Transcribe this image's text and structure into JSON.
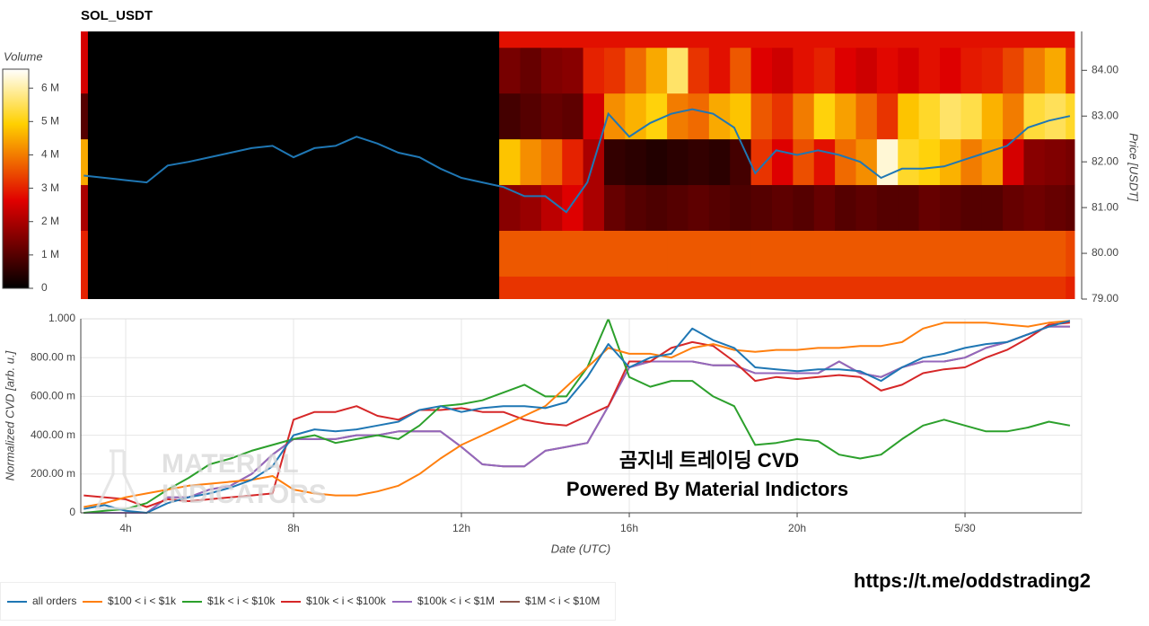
{
  "chart_data": [
    {
      "type": "heatmap",
      "title": "SOL_USDT",
      "ylabel": "Price [USDT]",
      "colorbar_title": "Volume",
      "xlim": [
        2.93,
        26.78
      ],
      "ylim": [
        79,
        84.85
      ],
      "yticks": [
        {
          "value": 79,
          "label": "79.00"
        },
        {
          "value": 80,
          "label": "80.00"
        },
        {
          "value": 81,
          "label": "81.00"
        },
        {
          "value": 82,
          "label": "82.00"
        },
        {
          "value": 83,
          "label": "83.00"
        },
        {
          "value": 84,
          "label": "84.00"
        }
      ],
      "clim": [
        0,
        6.57
      ],
      "cticks": [
        0,
        {
          "value": 1,
          "label": "1 M"
        },
        {
          "value": 2,
          "label": "2 M"
        },
        {
          "value": 3,
          "label": "3 M"
        },
        {
          "value": 4,
          "label": "4 M"
        },
        {
          "value": 5,
          "label": "5 M"
        },
        {
          "value": 6,
          "label": "6 M"
        }
      ],
      "colorscale": [
        [
          0,
          "#000000"
        ],
        [
          0.4,
          "#e00000"
        ],
        [
          0.75,
          "#ffd000"
        ],
        [
          1,
          "#ffffff"
        ]
      ],
      "x_bins": [
        2.93,
        3.1,
        12.9,
        13.4,
        13.9,
        14.4,
        14.9,
        15.4,
        15.9,
        16.4,
        16.9,
        17.4,
        17.9,
        18.4,
        18.9,
        19.4,
        19.9,
        20.4,
        20.9,
        21.4,
        21.9,
        22.4,
        22.9,
        23.4,
        23.9,
        24.4,
        24.9,
        25.4,
        25.9,
        26.4,
        26.61
      ],
      "y_bins": [
        78.5,
        79.5,
        80.5,
        81.5,
        82.5,
        83.5,
        84.5,
        85.5
      ],
      "z": [
        [
          3.0,
          0,
          3.2,
          3.2,
          3.2,
          3.2,
          3.2,
          3.2,
          3.2,
          3.2,
          3.2,
          3.2,
          3.2,
          3.2,
          3.2,
          3.2,
          3.2,
          3.2,
          3.2,
          3.2,
          3.2,
          3.2,
          3.2,
          3.2,
          3.2,
          3.2,
          3.2,
          3.2,
          3.2,
          3.0
        ],
        [
          3.0,
          0,
          3.6,
          3.6,
          3.6,
          3.6,
          3.6,
          3.6,
          3.6,
          3.6,
          3.6,
          3.6,
          3.6,
          3.6,
          3.6,
          3.6,
          3.6,
          3.6,
          3.6,
          3.6,
          3.6,
          3.6,
          3.6,
          3.6,
          3.6,
          3.6,
          3.6,
          3.6,
          3.6,
          3.4
        ],
        [
          2,
          0,
          1.6,
          1.8,
          2.2,
          2.6,
          2.0,
          1.2,
          1.0,
          0.9,
          1.0,
          1.1,
          1.0,
          0.9,
          1.0,
          1.1,
          1.0,
          1.2,
          1.0,
          1.1,
          1.0,
          1.0,
          1.2,
          1.1,
          1.0,
          1.0,
          1.2,
          1.3,
          1.2,
          1.1
        ],
        [
          4.5,
          0,
          4.8,
          4.2,
          3.8,
          3.0,
          2.0,
          0.6,
          0.5,
          0.4,
          0.5,
          0.6,
          0.5,
          0.8,
          3.2,
          2.6,
          3.5,
          2.8,
          3.8,
          4.2,
          6.3,
          5.2,
          5.0,
          4.6,
          4.0,
          4.4,
          2.5,
          1.6,
          1.5,
          1.4
        ],
        [
          1,
          0,
          0.8,
          1.0,
          1.2,
          1.1,
          2.5,
          4.2,
          4.6,
          5.0,
          4.0,
          3.8,
          4.5,
          4.8,
          3.6,
          3.2,
          4.0,
          5.0,
          4.4,
          3.8,
          3.2,
          4.8,
          5.2,
          5.6,
          5.4,
          4.6,
          4.0,
          5.3,
          5.5,
          5.2
        ],
        [
          2.5,
          0,
          1.4,
          1.2,
          1.5,
          1.6,
          3.0,
          3.2,
          3.8,
          4.5,
          5.6,
          3.2,
          2.8,
          3.6,
          2.6,
          2.4,
          2.8,
          3.0,
          2.6,
          2.4,
          2.7,
          2.5,
          2.8,
          2.6,
          2.9,
          3.0,
          3.4,
          4.0,
          4.5,
          3.2
        ],
        [
          2.5,
          0,
          2.8,
          2.8,
          2.8,
          2.8,
          2.8,
          2.8,
          2.8,
          2.8,
          2.8,
          2.8,
          2.8,
          2.8,
          2.8,
          2.8,
          2.8,
          2.8,
          2.8,
          2.8,
          2.8,
          2.8,
          2.8,
          2.8,
          2.8,
          2.8,
          2.8,
          2.8,
          2.8,
          2.8
        ]
      ],
      "x": [
        3,
        3.5,
        4,
        4.5,
        5,
        5.5,
        6,
        6.5,
        7,
        7.5,
        8,
        8.5,
        9,
        9.5,
        10,
        10.5,
        11,
        11.5,
        12,
        12.5,
        13,
        13.5,
        14,
        14.5,
        15,
        15.5,
        16,
        16.5,
        17,
        17.5,
        18,
        18.5,
        19,
        19.5,
        20,
        20.5,
        21,
        21.5,
        22,
        22.5,
        23,
        23.5,
        24,
        24.5,
        25,
        25.5,
        26,
        26.5
      ],
      "line": {
        "color": "#1f77b4",
        "values": [
          81.7,
          81.65,
          81.6,
          81.55,
          81.92,
          82.0,
          82.1,
          82.2,
          82.3,
          82.35,
          82.1,
          82.3,
          82.35,
          82.55,
          82.4,
          82.2,
          82.1,
          81.85,
          81.65,
          81.55,
          81.45,
          81.25,
          81.25,
          80.9,
          81.55,
          83.05,
          82.55,
          82.85,
          83.05,
          83.15,
          83.05,
          82.75,
          81.75,
          82.25,
          82.15,
          82.25,
          82.15,
          82.0,
          81.65,
          81.85,
          81.85,
          81.9,
          82.05,
          82.2,
          82.35,
          82.75,
          82.9,
          83.0
        ]
      }
    },
    {
      "type": "line",
      "xlabel": "Date (UTC)",
      "ylabel": "Normalized CVD [arb. u.]",
      "xlim": [
        2.93,
        26.78
      ],
      "ylim": [
        0,
        1.0
      ],
      "grid": true,
      "xticks": [
        {
          "value": 4,
          "label": "4h"
        },
        {
          "value": 8,
          "label": "8h"
        },
        {
          "value": 12,
          "label": "12h"
        },
        {
          "value": 16,
          "label": "16h"
        },
        {
          "value": 20,
          "label": "20h"
        },
        {
          "value": 24,
          "label": "5/30"
        }
      ],
      "yticks": [
        0,
        {
          "value": 0.2,
          "label": "200.00 m"
        },
        {
          "value": 0.4,
          "label": "400.00 m"
        },
        {
          "value": 0.6,
          "label": "600.00 m"
        },
        {
          "value": 0.8,
          "label": "800.00 m"
        },
        {
          "value": 1.0,
          "label": "1.000"
        }
      ],
      "x": [
        3,
        3.5,
        4,
        4.5,
        5,
        5.5,
        6,
        6.5,
        7,
        7.5,
        8,
        8.5,
        9,
        9.5,
        10,
        10.5,
        11,
        11.5,
        12,
        12.5,
        13,
        13.5,
        14,
        14.5,
        15,
        15.5,
        16,
        16.5,
        17,
        17.5,
        18,
        18.5,
        19,
        19.5,
        20,
        20.5,
        21,
        21.5,
        22,
        22.5,
        23,
        23.5,
        24,
        24.5,
        25,
        25.5,
        26,
        26.5
      ],
      "series": [
        {
          "name": "all orders",
          "color": "#1f77b4",
          "values": [
            0.02,
            0.04,
            0.01,
            0.0,
            0.05,
            0.08,
            0.1,
            0.13,
            0.17,
            0.24,
            0.4,
            0.43,
            0.42,
            0.43,
            0.45,
            0.47,
            0.53,
            0.55,
            0.52,
            0.54,
            0.55,
            0.55,
            0.54,
            0.57,
            0.7,
            0.87,
            0.75,
            0.8,
            0.82,
            0.95,
            0.89,
            0.85,
            0.75,
            0.74,
            0.73,
            0.74,
            0.74,
            0.73,
            0.68,
            0.75,
            0.8,
            0.82,
            0.85,
            0.87,
            0.88,
            0.92,
            0.96,
            0.99
          ]
        },
        {
          "name": "$100 < i < $1k",
          "color": "#ff7f0e",
          "values": [
            0.03,
            0.05,
            0.08,
            0.1,
            0.12,
            0.14,
            0.15,
            0.16,
            0.17,
            0.19,
            0.12,
            0.1,
            0.09,
            0.09,
            0.11,
            0.14,
            0.2,
            0.28,
            0.35,
            0.4,
            0.45,
            0.5,
            0.55,
            0.65,
            0.75,
            0.85,
            0.82,
            0.82,
            0.8,
            0.85,
            0.87,
            0.84,
            0.83,
            0.84,
            0.84,
            0.85,
            0.85,
            0.86,
            0.86,
            0.88,
            0.95,
            0.98,
            0.98,
            0.98,
            0.97,
            0.96,
            0.98,
            0.99
          ]
        },
        {
          "name": "$1k < i < $10k",
          "color": "#2ca02c",
          "values": [
            0.0,
            0.01,
            0.02,
            0.05,
            0.12,
            0.18,
            0.25,
            0.28,
            0.32,
            0.35,
            0.38,
            0.4,
            0.36,
            0.38,
            0.4,
            0.38,
            0.45,
            0.55,
            0.56,
            0.58,
            0.62,
            0.66,
            0.6,
            0.6,
            0.75,
            1.0,
            0.7,
            0.65,
            0.68,
            0.68,
            0.6,
            0.55,
            0.35,
            0.36,
            0.38,
            0.37,
            0.3,
            0.28,
            0.3,
            0.38,
            0.45,
            0.48,
            0.45,
            0.42,
            0.42,
            0.44,
            0.47,
            0.45
          ]
        },
        {
          "name": "$10k < i < $100k",
          "color": "#d62728",
          "values": [
            0.09,
            0.08,
            0.07,
            0.03,
            0.07,
            0.06,
            0.07,
            0.08,
            0.09,
            0.1,
            0.48,
            0.52,
            0.52,
            0.55,
            0.5,
            0.48,
            0.53,
            0.53,
            0.54,
            0.52,
            0.52,
            0.48,
            0.46,
            0.45,
            0.5,
            0.55,
            0.78,
            0.78,
            0.85,
            0.88,
            0.86,
            0.78,
            0.68,
            0.7,
            0.69,
            0.7,
            0.71,
            0.7,
            0.63,
            0.66,
            0.72,
            0.74,
            0.75,
            0.8,
            0.84,
            0.9,
            0.97,
            0.98
          ]
        },
        {
          "name": "$100k < i < $1M",
          "color": "#9467bd",
          "values": [
            0.0,
            0.0,
            0.0,
            0.0,
            0.08,
            0.08,
            0.12,
            0.14,
            0.2,
            0.3,
            0.38,
            0.38,
            0.38,
            0.4,
            0.4,
            0.42,
            0.42,
            0.42,
            0.34,
            0.25,
            0.24,
            0.24,
            0.32,
            0.34,
            0.36,
            0.55,
            0.75,
            0.78,
            0.78,
            0.78,
            0.76,
            0.76,
            0.72,
            0.72,
            0.72,
            0.72,
            0.78,
            0.72,
            0.7,
            0.75,
            0.78,
            0.78,
            0.8,
            0.85,
            0.88,
            0.92,
            0.96,
            0.96
          ]
        },
        {
          "name": "$1M < i < $10M",
          "color": "#8c564b",
          "values": [
            0.0,
            0.0,
            0.0,
            0.0,
            0.08,
            0.08,
            0.12,
            0.14,
            0.2,
            0.3,
            0.38,
            0.38,
            0.38,
            0.4,
            0.4,
            0.42,
            0.42,
            0.42,
            0.34,
            0.25,
            0.24,
            0.24,
            0.32,
            0.34,
            0.36,
            0.55,
            0.75,
            0.78,
            0.78,
            0.78,
            0.76,
            0.76,
            0.72,
            0.72,
            0.72,
            0.72,
            0.78,
            0.72,
            0.7,
            0.75,
            0.78,
            0.78,
            0.8,
            0.85,
            0.88,
            0.92,
            0.96,
            0.96
          ]
        }
      ],
      "watermark": [
        "MATERIAL",
        "INDICATORS"
      ],
      "annotations": [
        "곰지네 트레이딩 CVD",
        "Powered By Material Indictors"
      ]
    }
  ],
  "footer_link": "https://t.me/oddstrading2"
}
